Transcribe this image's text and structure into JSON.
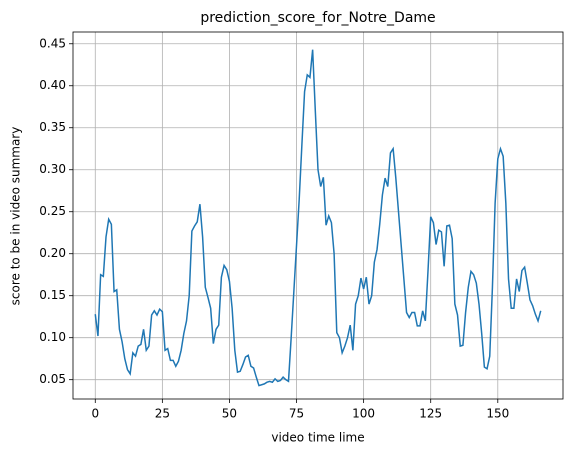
{
  "chart_data": {
    "type": "line",
    "title": "prediction_score_for_Notre_Dame",
    "x_label": "video time lime",
    "y_label": "score to be in video summary",
    "grid": true,
    "xlim": [
      -8.3,
      174.3
    ],
    "ylim": [
      0.027,
      0.464
    ],
    "xticks": [
      0,
      25,
      50,
      75,
      100,
      125,
      150
    ],
    "yticks": [
      0.05,
      {
        "value": 0.1,
        "label": "0.10"
      },
      0.15,
      {
        "value": 0.2,
        "label": "0.20"
      },
      0.25,
      {
        "value": 0.3,
        "label": "0.30"
      },
      0.35,
      {
        "value": 0.4,
        "label": "0.40"
      },
      0.45
    ],
    "x": [
      0,
      1,
      2,
      3,
      4,
      5,
      6,
      7,
      8,
      9,
      10,
      11,
      12,
      13,
      14,
      15,
      16,
      17,
      18,
      19,
      20,
      21,
      22,
      23,
      24,
      25,
      26,
      27,
      28,
      29,
      30,
      31,
      32,
      33,
      34,
      35,
      36,
      37,
      38,
      39,
      40,
      41,
      42,
      43,
      44,
      45,
      46,
      47,
      48,
      49,
      50,
      51,
      52,
      53,
      54,
      55,
      56,
      57,
      58,
      59,
      60,
      61,
      62,
      63,
      64,
      65,
      66,
      67,
      68,
      69,
      70,
      71,
      72,
      73,
      74,
      75,
      76,
      77,
      78,
      79,
      80,
      81,
      82,
      83,
      84,
      85,
      86,
      87,
      88,
      89,
      90,
      91,
      92,
      93,
      94,
      95,
      96,
      97,
      98,
      99,
      100,
      101,
      102,
      103,
      104,
      105,
      106,
      107,
      108,
      109,
      110,
      111,
      112,
      113,
      114,
      115,
      116,
      117,
      118,
      119,
      120,
      121,
      122,
      123,
      124,
      125,
      126,
      127,
      128,
      129,
      130,
      131,
      132,
      133,
      134,
      135,
      136,
      137,
      138,
      139,
      140,
      141,
      142,
      143,
      144,
      145,
      146,
      147,
      148,
      149,
      150,
      151,
      152,
      153,
      154,
      155,
      156,
      157,
      158,
      159,
      160,
      161,
      162,
      163,
      164,
      165,
      166
    ],
    "series": [
      {
        "color": "#1f77b4",
        "values": [
          0.128,
          0.102,
          0.175,
          0.173,
          0.22,
          0.241,
          0.235,
          0.155,
          0.157,
          0.11,
          0.095,
          0.075,
          0.062,
          0.057,
          0.082,
          0.078,
          0.09,
          0.092,
          0.11,
          0.085,
          0.09,
          0.127,
          0.132,
          0.127,
          0.134,
          0.131,
          0.085,
          0.087,
          0.073,
          0.073,
          0.066,
          0.072,
          0.085,
          0.105,
          0.12,
          0.15,
          0.227,
          0.233,
          0.238,
          0.259,
          0.22,
          0.16,
          0.148,
          0.135,
          0.093,
          0.11,
          0.115,
          0.172,
          0.186,
          0.181,
          0.167,
          0.135,
          0.085,
          0.059,
          0.06,
          0.068,
          0.077,
          0.079,
          0.066,
          0.064,
          0.053,
          0.043,
          0.044,
          0.045,
          0.047,
          0.048,
          0.047,
          0.051,
          0.048,
          0.049,
          0.053,
          0.05,
          0.048,
          0.1,
          0.155,
          0.21,
          0.265,
          0.33,
          0.393,
          0.413,
          0.41,
          0.443,
          0.37,
          0.3,
          0.28,
          0.291,
          0.234,
          0.245,
          0.237,
          0.2,
          0.106,
          0.1,
          0.082,
          0.09,
          0.1,
          0.115,
          0.085,
          0.14,
          0.15,
          0.171,
          0.158,
          0.172,
          0.14,
          0.15,
          0.19,
          0.205,
          0.235,
          0.27,
          0.29,
          0.28,
          0.32,
          0.325,
          0.29,
          0.25,
          0.21,
          0.17,
          0.13,
          0.124,
          0.13,
          0.13,
          0.114,
          0.114,
          0.132,
          0.12,
          0.18,
          0.244,
          0.237,
          0.211,
          0.228,
          0.226,
          0.185,
          0.233,
          0.234,
          0.218,
          0.14,
          0.127,
          0.09,
          0.091,
          0.13,
          0.16,
          0.179,
          0.175,
          0.165,
          0.14,
          0.105,
          0.065,
          0.063,
          0.078,
          0.16,
          0.26,
          0.313,
          0.325,
          0.316,
          0.26,
          0.17,
          0.135,
          0.135,
          0.17,
          0.155,
          0.18,
          0.184,
          0.165,
          0.145,
          0.138,
          0.128,
          0.12,
          0.132
        ]
      }
    ]
  }
}
